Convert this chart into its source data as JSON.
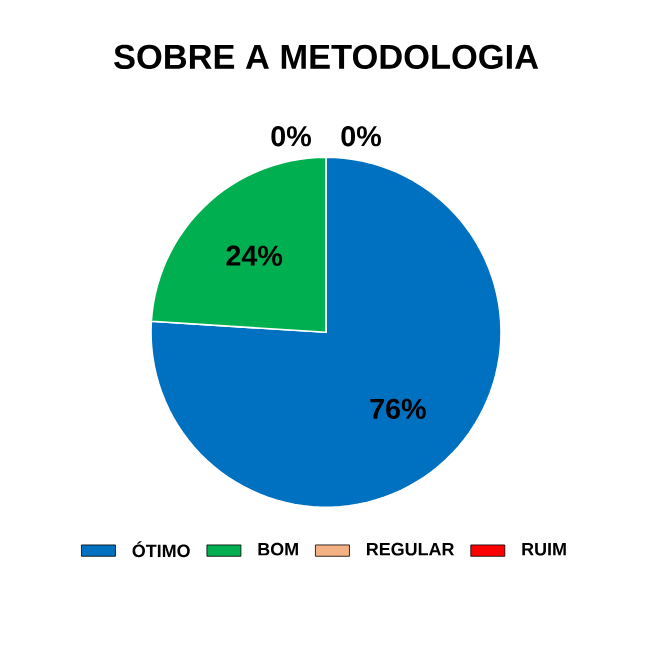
{
  "chart_data": {
    "type": "pie",
    "title": "SOBRE A METODOLOGIA",
    "categories": [
      "ÓTIMO",
      "BOM",
      "REGULAR",
      "RUIM"
    ],
    "values": [
      76,
      24,
      0,
      0
    ],
    "value_labels": [
      "76%",
      "24%",
      "0%",
      "0%"
    ],
    "colors": [
      "#0070c0",
      "#00b050",
      "#f4b183",
      "#ff0000"
    ],
    "legend": "bottom"
  }
}
